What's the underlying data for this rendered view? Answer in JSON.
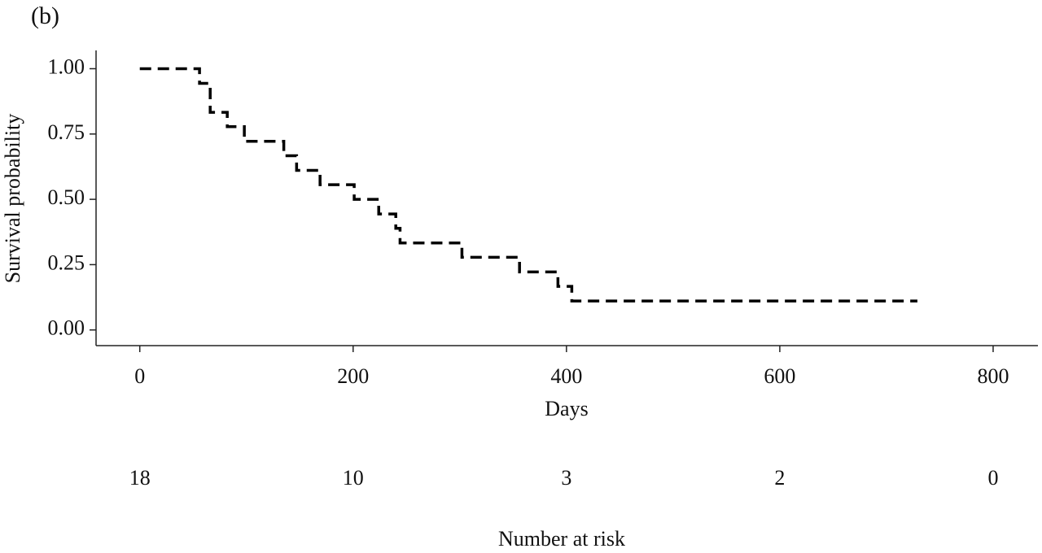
{
  "chart_data": {
    "type": "step",
    "panel_label": "(b)",
    "x_label": "Days",
    "y_label": "Survival probability",
    "series": [
      {
        "color": "#000000",
        "x": [
          0,
          56,
          66,
          82,
          98,
          135,
          147,
          169,
          201,
          224,
          240,
          244,
          302,
          356,
          392,
          405,
          729
        ],
        "values": [
          1,
          0.944,
          0.833,
          0.778,
          0.722,
          0.667,
          0.611,
          0.556,
          0.5,
          0.444,
          0.389,
          0.333,
          0.278,
          0.222,
          0.167,
          0.111,
          0.111
        ]
      }
    ],
    "xlim": [
      -41,
      842
    ],
    "xticks": [
      0,
      200,
      400,
      600,
      800
    ],
    "ylim": [
      -0.06,
      1.07
    ],
    "yticks": [
      {
        "value": 0,
        "label": "0.00"
      },
      0.25,
      {
        "value": 0.5,
        "label": "0.50"
      },
      0.75,
      {
        "value": 1,
        "label": "1.00"
      }
    ],
    "risk_table": {
      "label": "Number at risk",
      "values": [
        18,
        10,
        3,
        2,
        0
      ]
    }
  }
}
